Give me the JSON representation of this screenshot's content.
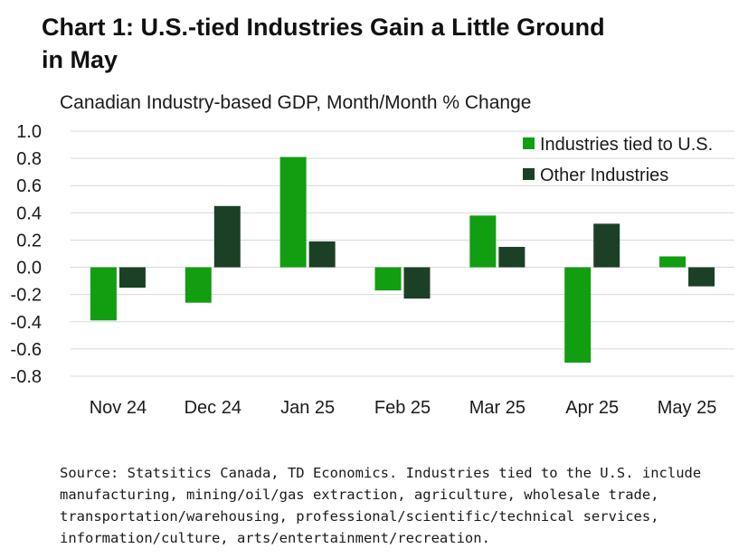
{
  "title_line1": "Chart 1: U.S.-tied Industries Gain a Little Ground",
  "title_line2": "in May",
  "chart_data": {
    "type": "bar",
    "title": "Chart 1: U.S.-tied Industries Gain a Little Ground in May",
    "subtitle": "Canadian Industry-based GDP, Month/Month % Change",
    "categories": [
      "Nov 24",
      "Dec 24",
      "Jan 25",
      "Feb 25",
      "Mar 25",
      "Apr 25",
      "May 25"
    ],
    "series": [
      {
        "name": "Industries tied to U.S.",
        "color": "#119e11",
        "values": [
          -0.39,
          -0.26,
          0.81,
          -0.17,
          0.38,
          -0.7,
          0.08
        ]
      },
      {
        "name": "Other Industries",
        "color": "#1c4026",
        "values": [
          -0.15,
          0.45,
          0.19,
          -0.23,
          0.15,
          0.32,
          -0.14
        ]
      }
    ],
    "ylim": [
      -0.8,
      1.0
    ],
    "yticks": [
      "1.0",
      "0.8",
      "0.6",
      "0.4",
      "0.2",
      "0.0",
      "-0.2",
      "-0.4",
      "-0.6",
      "-0.8"
    ],
    "grid": true,
    "legend_position": "top-right",
    "xlabel": "",
    "ylabel": ""
  },
  "source_lines": [
    "Source: Statsitics Canada, TD Economics. Industries tied to the U.S. include",
    "manufacturing, mining/oil/gas extraction, agriculture, wholesale trade,",
    "transportation/warehousing, professional/scientific/technical services,",
    "information/culture, arts/entertainment/recreation."
  ],
  "colors": {
    "grid": "#d9d9d9",
    "text": "#1a1a1a"
  }
}
